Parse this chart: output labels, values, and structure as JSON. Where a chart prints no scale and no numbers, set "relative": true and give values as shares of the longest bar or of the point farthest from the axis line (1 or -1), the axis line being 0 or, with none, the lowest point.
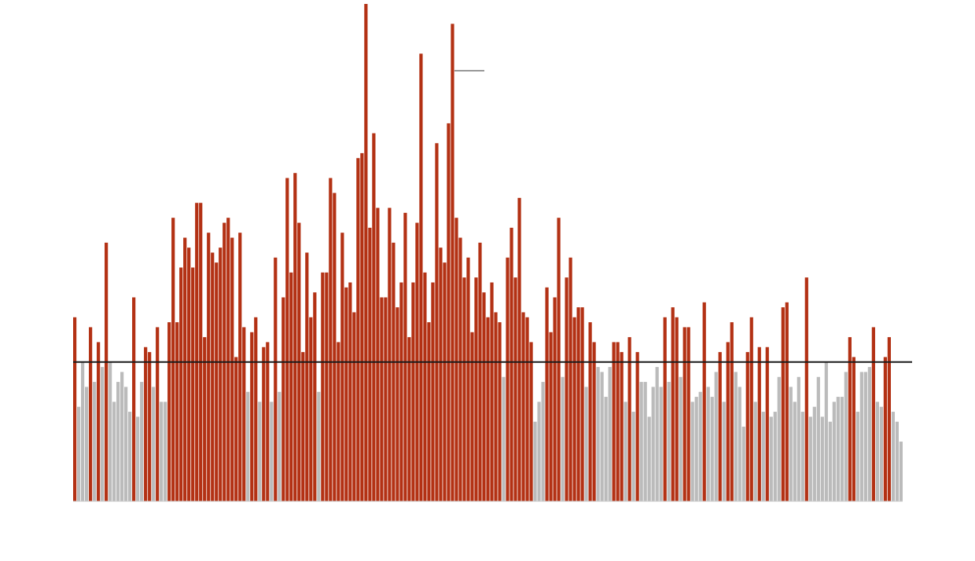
{
  "chart_data": {
    "type": "bar",
    "relative": true,
    "categories": [
      null,
      null,
      null,
      null,
      null,
      null,
      null,
      null,
      null,
      null,
      null,
      null,
      null,
      null,
      null,
      null,
      null,
      null,
      null,
      null,
      null,
      null,
      null,
      null,
      null,
      null,
      null,
      null,
      null,
      null,
      null,
      null,
      null,
      null,
      null,
      null,
      null,
      null,
      null,
      null,
      null,
      null,
      null,
      null,
      null,
      null,
      null,
      null,
      null,
      null,
      null,
      null,
      null,
      null,
      null,
      null,
      null,
      null,
      null,
      null,
      null,
      null,
      null,
      null,
      null,
      null,
      null,
      null,
      null,
      null,
      null,
      null,
      null,
      null,
      null,
      null,
      null,
      null,
      null,
      null,
      null,
      null,
      null,
      null,
      null,
      null,
      null,
      null,
      null,
      null,
      null,
      null,
      null,
      null,
      null,
      null,
      null,
      null,
      null,
      null,
      null,
      null,
      null,
      null,
      null,
      null,
      null,
      null,
      null,
      null,
      null,
      null,
      null,
      null,
      null,
      null,
      null,
      null,
      null,
      null,
      null,
      null,
      null,
      null,
      null,
      null,
      null,
      null,
      null,
      null,
      null,
      null,
      null,
      null,
      null,
      null,
      null,
      null,
      null,
      null,
      null,
      null,
      null,
      null,
      null,
      null,
      null,
      null,
      null,
      null,
      null,
      null,
      null,
      null,
      null,
      null,
      null,
      null,
      null,
      null,
      null,
      null,
      null,
      null,
      null,
      null,
      null,
      null,
      null,
      null,
      null,
      null,
      null,
      null,
      null,
      null,
      null,
      null,
      null,
      null,
      null,
      null,
      null,
      null,
      null,
      null,
      null,
      null,
      null,
      null,
      null,
      null,
      null,
      null,
      null,
      null,
      null,
      null,
      null,
      null,
      null,
      null,
      null,
      null,
      null,
      null,
      null,
      null,
      null,
      null,
      null
    ],
    "values": [
      0.37,
      0.19,
      0.28,
      0.23,
      0.35,
      0.24,
      0.32,
      0.27,
      0.52,
      0.28,
      0.2,
      0.24,
      0.26,
      0.23,
      0.18,
      0.41,
      0.17,
      0.24,
      0.31,
      0.3,
      0.23,
      0.35,
      0.2,
      0.2,
      0.36,
      0.57,
      0.36,
      0.47,
      0.53,
      0.51,
      0.47,
      0.6,
      0.6,
      0.33,
      0.54,
      0.5,
      0.48,
      0.51,
      0.56,
      0.57,
      0.53,
      0.29,
      0.54,
      0.35,
      0.22,
      0.34,
      0.37,
      0.2,
      0.31,
      0.32,
      0.2,
      0.49,
      0.22,
      0.41,
      0.65,
      0.46,
      0.66,
      0.56,
      0.3,
      0.5,
      0.37,
      0.42,
      0.22,
      0.46,
      0.46,
      0.65,
      0.62,
      0.32,
      0.54,
      0.43,
      0.44,
      0.38,
      0.69,
      0.7,
      1.0,
      0.55,
      0.74,
      0.59,
      0.41,
      0.41,
      0.59,
      0.52,
      0.39,
      0.44,
      0.58,
      0.33,
      0.44,
      0.56,
      0.9,
      0.46,
      0.36,
      0.44,
      0.72,
      0.51,
      0.48,
      0.76,
      0.96,
      0.57,
      0.53,
      0.45,
      0.49,
      0.34,
      0.45,
      0.52,
      0.42,
      0.37,
      0.44,
      0.38,
      0.36,
      0.25,
      0.49,
      0.55,
      0.45,
      0.61,
      0.38,
      0.37,
      0.32,
      0.16,
      0.2,
      0.24,
      0.43,
      0.34,
      0.41,
      0.57,
      0.25,
      0.45,
      0.49,
      0.37,
      0.39,
      0.39,
      0.23,
      0.36,
      0.32,
      0.27,
      0.26,
      0.21,
      0.27,
      0.32,
      0.32,
      0.3,
      0.2,
      0.33,
      0.18,
      0.3,
      0.24,
      0.24,
      0.17,
      0.23,
      0.27,
      0.23,
      0.37,
      0.24,
      0.39,
      0.37,
      0.25,
      0.35,
      0.35,
      0.2,
      0.21,
      0.22,
      0.4,
      0.23,
      0.21,
      0.26,
      0.3,
      0.2,
      0.32,
      0.36,
      0.26,
      0.23,
      0.15,
      0.3,
      0.37,
      0.2,
      0.31,
      0.18,
      0.31,
      0.17,
      0.18,
      0.25,
      0.39,
      0.4,
      0.23,
      0.2,
      0.25,
      0.18,
      0.45,
      0.17,
      0.19,
      0.25,
      0.17,
      0.28,
      0.16,
      0.2,
      0.21,
      0.21,
      0.26,
      0.33,
      0.29,
      0.18,
      0.26,
      0.26,
      0.27,
      0.35,
      0.2,
      0.19,
      0.29,
      0.33,
      0.18,
      0.16,
      0.12
    ],
    "colors": [
      "#b33114",
      "#bbbbbb",
      "#bbbbbb",
      "#bbbbbb",
      "#b33114",
      "#bbbbbb",
      "#b33114",
      "#bbbbbb",
      "#b33114",
      "#bbbbbb",
      "#bbbbbb",
      "#bbbbbb",
      "#bbbbbb",
      "#bbbbbb",
      "#bbbbbb",
      "#b33114",
      "#bbbbbb",
      "#bbbbbb",
      "#b33114",
      "#b33114",
      "#bbbbbb",
      "#b33114",
      "#bbbbbb",
      "#bbbbbb",
      "#b33114",
      "#b33114",
      "#b33114",
      "#b33114",
      "#b33114",
      "#b33114",
      "#b33114",
      "#b33114",
      "#b33114",
      "#b33114",
      "#b33114",
      "#b33114",
      "#b33114",
      "#b33114",
      "#b33114",
      "#b33114",
      "#b33114",
      "#b33114",
      "#b33114",
      "#b33114",
      "#bbbbbb",
      "#b33114",
      "#b33114",
      "#bbbbbb",
      "#b33114",
      "#b33114",
      "#bbbbbb",
      "#b33114",
      "#bbbbbb",
      "#b33114",
      "#b33114",
      "#b33114",
      "#b33114",
      "#b33114",
      "#b33114",
      "#b33114",
      "#b33114",
      "#b33114",
      "#bbbbbb",
      "#b33114",
      "#b33114",
      "#b33114",
      "#b33114",
      "#b33114",
      "#b33114",
      "#b33114",
      "#b33114",
      "#b33114",
      "#b33114",
      "#b33114",
      "#b33114",
      "#b33114",
      "#b33114",
      "#b33114",
      "#b33114",
      "#b33114",
      "#b33114",
      "#b33114",
      "#b33114",
      "#b33114",
      "#b33114",
      "#b33114",
      "#b33114",
      "#b33114",
      "#b33114",
      "#b33114",
      "#b33114",
      "#b33114",
      "#b33114",
      "#b33114",
      "#b33114",
      "#b33114",
      "#b33114",
      "#b33114",
      "#b33114",
      "#b33114",
      "#b33114",
      "#b33114",
      "#b33114",
      "#b33114",
      "#b33114",
      "#b33114",
      "#b33114",
      "#b33114",
      "#b33114",
      "#bbbbbb",
      "#b33114",
      "#b33114",
      "#b33114",
      "#b33114",
      "#b33114",
      "#b33114",
      "#b33114",
      "#bbbbbb",
      "#bbbbbb",
      "#bbbbbb",
      "#b33114",
      "#b33114",
      "#b33114",
      "#b33114",
      "#bbbbbb",
      "#b33114",
      "#b33114",
      "#b33114",
      "#b33114",
      "#b33114",
      "#bbbbbb",
      "#b33114",
      "#b33114",
      "#bbbbbb",
      "#bbbbbb",
      "#bbbbbb",
      "#bbbbbb",
      "#b33114",
      "#b33114",
      "#b33114",
      "#bbbbbb",
      "#b33114",
      "#bbbbbb",
      "#b33114",
      "#bbbbbb",
      "#bbbbbb",
      "#bbbbbb",
      "#bbbbbb",
      "#bbbbbb",
      "#bbbbbb",
      "#b33114",
      "#bbbbbb",
      "#b33114",
      "#b33114",
      "#bbbbbb",
      "#b33114",
      "#b33114",
      "#bbbbbb",
      "#bbbbbb",
      "#bbbbbb",
      "#b33114",
      "#bbbbbb",
      "#bbbbbb",
      "#bbbbbb",
      "#b33114",
      "#bbbbbb",
      "#b33114",
      "#b33114",
      "#bbbbbb",
      "#bbbbbb",
      "#bbbbbb",
      "#b33114",
      "#b33114",
      "#bbbbbb",
      "#b33114",
      "#bbbbbb",
      "#b33114",
      "#bbbbbb",
      "#bbbbbb",
      "#bbbbbb",
      "#b33114",
      "#b33114",
      "#bbbbbb",
      "#bbbbbb",
      "#bbbbbb",
      "#bbbbbb",
      "#b33114",
      "#bbbbbb",
      "#bbbbbb",
      "#bbbbbb",
      "#bbbbbb",
      "#bbbbbb",
      "#bbbbbb",
      "#bbbbbb",
      "#bbbbbb",
      "#bbbbbb",
      "#bbbbbb",
      "#b33114",
      "#b33114",
      "#bbbbbb",
      "#bbbbbb",
      "#bbbbbb",
      "#bbbbbb",
      "#b33114",
      "#bbbbbb",
      "#bbbbbb",
      "#b33114",
      "#b33114",
      "#bbbbbb",
      "#bbbbbb",
      "#bbbbbb"
    ],
    "ref_lines": [
      {
        "axis": "y",
        "value": 0.28,
        "color": "#1a1a1a"
      }
    ]
  }
}
